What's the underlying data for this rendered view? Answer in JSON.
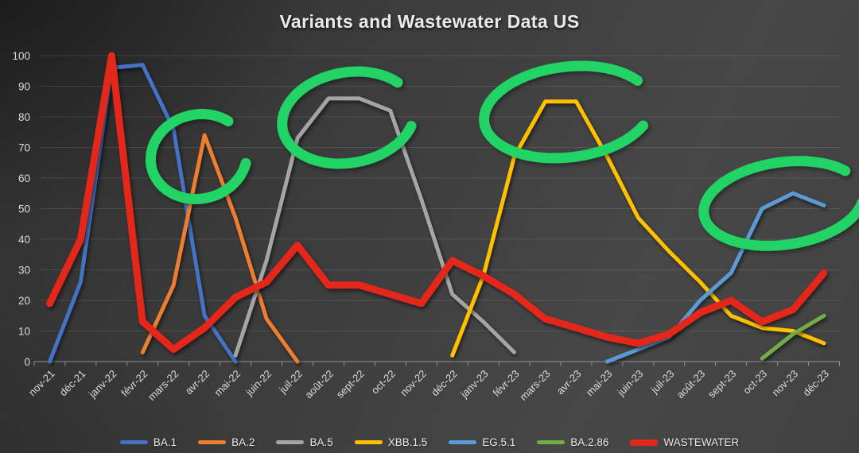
{
  "title": "Variants and Wastewater Data US",
  "chart_data": {
    "type": "line",
    "title": "Variants and Wastewater Data US",
    "categories": [
      "nov-21",
      "déc-21",
      "janv-22",
      "févr-22",
      "mars-22",
      "avr-22",
      "mai-22",
      "juin-22",
      "juil-22",
      "août-22",
      "sept-22",
      "oct-22",
      "nov-22",
      "déc-22",
      "janv-23",
      "févr-23",
      "mars-23",
      "avr-23",
      "mai-23",
      "juin-23",
      "juil-23",
      "août-23",
      "sept-23",
      "oct-23",
      "nov-23",
      "déc-23"
    ],
    "y_tick_labels": [
      "0",
      "10",
      "20",
      "30",
      "40",
      "50",
      "60",
      "70",
      "80",
      "90",
      "100"
    ],
    "ylim": [
      0,
      100
    ],
    "y_tick_step": 10,
    "grid": "horizontal",
    "legend_position": "bottom",
    "series": [
      {
        "name": "BA.1",
        "color": "#4472C4",
        "line_width": 5,
        "values": [
          0,
          26,
          96,
          97,
          76,
          15,
          0,
          null,
          null,
          null,
          null,
          null,
          null,
          null,
          null,
          null,
          null,
          null,
          null,
          null,
          null,
          null,
          null,
          null,
          null,
          null
        ]
      },
      {
        "name": "BA.2",
        "color": "#ED7D31",
        "line_width": 5,
        "values": [
          null,
          null,
          null,
          3,
          25,
          74,
          47,
          14,
          0,
          null,
          null,
          null,
          null,
          null,
          null,
          null,
          null,
          null,
          null,
          null,
          null,
          null,
          null,
          null,
          null,
          null
        ]
      },
      {
        "name": "BA.5",
        "color": "#A5A5A5",
        "line_width": 5,
        "values": [
          null,
          null,
          null,
          null,
          null,
          null,
          2,
          33,
          73,
          86,
          86,
          82,
          53,
          22,
          13,
          3,
          null,
          null,
          null,
          null,
          null,
          null,
          null,
          null,
          null,
          null
        ]
      },
      {
        "name": "XBB.1.5",
        "color": "#FFC000",
        "line_width": 5,
        "values": [
          null,
          null,
          null,
          null,
          null,
          null,
          null,
          null,
          null,
          null,
          null,
          null,
          null,
          2,
          28,
          67,
          85,
          85,
          67,
          47,
          36,
          26,
          15,
          11,
          10,
          6
        ]
      },
      {
        "name": "EG.5.1",
        "color": "#5B9BD5",
        "line_width": 5,
        "values": [
          null,
          null,
          null,
          null,
          null,
          null,
          null,
          null,
          null,
          null,
          null,
          null,
          null,
          null,
          null,
          null,
          null,
          null,
          0,
          4,
          8,
          20,
          29,
          50,
          55,
          51
        ]
      },
      {
        "name": "BA.2.86",
        "color": "#70AD47",
        "line_width": 5,
        "values": [
          null,
          null,
          null,
          null,
          null,
          null,
          null,
          null,
          null,
          null,
          null,
          null,
          null,
          null,
          null,
          null,
          null,
          null,
          null,
          null,
          null,
          null,
          null,
          1,
          9,
          15
        ]
      },
      {
        "name": "WASTEWATER",
        "color": "#E4271B",
        "line_width": 9,
        "values": [
          19,
          40,
          100,
          13,
          4,
          11,
          21,
          26,
          38,
          25,
          25,
          22,
          19,
          33,
          28,
          22,
          14,
          11,
          8,
          6,
          9,
          16,
          20,
          13,
          17,
          29
        ]
      }
    ],
    "annotations": {
      "type": "hand-drawn-highlight-circles",
      "color": "#22D466",
      "stroke_width": 13,
      "circles": [
        {
          "label": "highlight-avr-22-BA.2-peak",
          "cx": 250,
          "cy": 197,
          "rx": 61,
          "ry": 53,
          "rotate": -14,
          "start_deg": -40,
          "sweep_deg": 295
        },
        {
          "label": "highlight-sept-22-BA.5-peak",
          "cx": 438,
          "cy": 148,
          "rx": 84,
          "ry": 57,
          "rotate": -10,
          "start_deg": -35,
          "sweep_deg": 300
        },
        {
          "label": "highlight-mars-23-XBB.1.5-peak",
          "cx": 714,
          "cy": 141,
          "rx": 106,
          "ry": 57,
          "rotate": -7,
          "start_deg": -30,
          "sweep_deg": 300
        },
        {
          "label": "highlight-nov-23-EG.5.1-peak",
          "cx": 985,
          "cy": 256,
          "rx": 101,
          "ry": 52,
          "rotate": -8,
          "start_deg": -35,
          "sweep_deg": 312
        }
      ]
    }
  }
}
